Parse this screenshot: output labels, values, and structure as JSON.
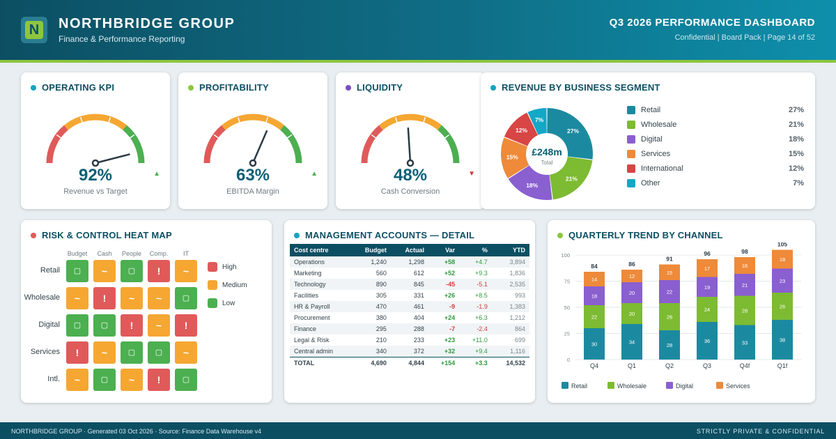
{
  "header": {
    "logo_letter": "N",
    "company": "NORTHBRIDGE GROUP",
    "subtitle": "Finance & Performance Reporting",
    "dashboard_title": "Q3 2026 PERFORMANCE DASHBOARD",
    "meta": "Confidential | Board Pack | Page 14 of 52"
  },
  "colors": {
    "teal": "#0c4f63",
    "accent_green": "#8dc63f",
    "high": "#e05a5a",
    "medium": "#f5a732",
    "low": "#4caf50"
  },
  "kpis": [
    {
      "title": "OPERATING KPI",
      "dot": "#14a4bf",
      "value": "92%",
      "percent": 92,
      "label": "Revenue vs Target",
      "trend": "▲",
      "trend_dir": "up"
    },
    {
      "title": "PROFITABILITY",
      "dot": "#8dc63f",
      "value": "63%",
      "percent": 63,
      "label": "EBITDA Margin",
      "trend": "▲",
      "trend_dir": "up"
    },
    {
      "title": "LIQUIDITY",
      "dot": "#7a4fc0",
      "value": "48%",
      "percent": 48,
      "label": "Cash Conversion",
      "trend": "▼",
      "trend_dir": "down"
    }
  ],
  "segments": {
    "title": "REVENUE BY BUSINESS SEGMENT",
    "center_value": "£248m",
    "center_label": "Total",
    "items": [
      {
        "name": "Retail",
        "pct": 27,
        "label": "27%",
        "color": "#1b8aa0"
      },
      {
        "name": "Wholesale",
        "pct": 21,
        "label": "21%",
        "color": "#7dbb32"
      },
      {
        "name": "Digital",
        "pct": 18,
        "label": "18%",
        "color": "#8a5fd0"
      },
      {
        "name": "Services",
        "pct": 15,
        "label": "15%",
        "color": "#ee8a3a"
      },
      {
        "name": "International",
        "pct": 12,
        "label": "12%",
        "color": "#d84545"
      },
      {
        "name": "Other",
        "pct": 7,
        "label": "7%",
        "color": "#13a8c6"
      }
    ]
  },
  "heatmap": {
    "title": "RISK & CONTROL HEAT MAP",
    "columns": [
      "Budget",
      "Cash",
      "People",
      "Comp.",
      "IT"
    ],
    "rows": [
      {
        "label": "Retail",
        "cells": [
          "L",
          "M",
          "L",
          "H",
          "M"
        ]
      },
      {
        "label": "Wholesale",
        "cells": [
          "M",
          "H",
          "M",
          "M",
          "L"
        ]
      },
      {
        "label": "Digital",
        "cells": [
          "L",
          "L",
          "H",
          "M",
          "H"
        ]
      },
      {
        "label": "Services",
        "cells": [
          "H",
          "M",
          "L",
          "L",
          "M"
        ]
      },
      {
        "label": "Intl.",
        "cells": [
          "M",
          "L",
          "M",
          "H",
          "L"
        ]
      }
    ],
    "symbols": {
      "H": "!",
      "M": "~",
      "L": "▢"
    },
    "legend": [
      {
        "level": "H",
        "label": "High"
      },
      {
        "level": "M",
        "label": "Medium"
      },
      {
        "level": "L",
        "label": "Low"
      }
    ]
  },
  "accounts": {
    "title": "MANAGEMENT ACCOUNTS — DETAIL",
    "headers": [
      "Cost centre",
      "Budget",
      "Actual",
      "Var",
      "%",
      "YTD"
    ],
    "rows": [
      [
        "Operations",
        "1,240",
        "1,298",
        "+58",
        "+4.7",
        "3,894"
      ],
      [
        "Marketing",
        "560",
        "612",
        "+52",
        "+9.3",
        "1,836"
      ],
      [
        "Technology",
        "890",
        "845",
        "-45",
        "-5.1",
        "2,535"
      ],
      [
        "Facilities",
        "305",
        "331",
        "+26",
        "+8.5",
        "993"
      ],
      [
        "HR & Payroll",
        "470",
        "461",
        "-9",
        "-1.9",
        "1,383"
      ],
      [
        "Procurement",
        "380",
        "404",
        "+24",
        "+6.3",
        "1,212"
      ],
      [
        "Finance",
        "295",
        "288",
        "-7",
        "-2.4",
        "864"
      ],
      [
        "Legal & Risk",
        "210",
        "233",
        "+23",
        "+11.0",
        "699"
      ],
      [
        "Central admin",
        "340",
        "372",
        "+32",
        "+9.4",
        "1,116"
      ]
    ],
    "total": [
      "TOTAL",
      "4,690",
      "4,844",
      "+154",
      "+3.3",
      "14,532"
    ]
  },
  "trend": {
    "title": "QUARTERLY TREND BY CHANNEL"
  },
  "chart_data": {
    "type": "bar",
    "stacked": true,
    "categories": [
      "Q4",
      "Q1",
      "Q2",
      "Q3",
      "Q4f",
      "Q1f"
    ],
    "series": [
      {
        "name": "Retail",
        "color": "#1b8aa0",
        "values": [
          30,
          34,
          28,
          36,
          33,
          38
        ]
      },
      {
        "name": "Wholesale",
        "color": "#7dbb32",
        "values": [
          22,
          20,
          26,
          24,
          28,
          26
        ]
      },
      {
        "name": "Digital",
        "color": "#8a5fd0",
        "values": [
          18,
          20,
          22,
          19,
          21,
          23
        ]
      },
      {
        "name": "Services",
        "color": "#ee8a3a",
        "values": [
          14,
          12,
          15,
          17,
          16,
          18
        ]
      }
    ],
    "totals": [
      84,
      86,
      91,
      96,
      98,
      105
    ],
    "yticks": [
      0,
      25,
      50,
      75,
      100
    ],
    "ylim": [
      0,
      100
    ],
    "grid": true,
    "legend": "bottom"
  },
  "footer": {
    "left": "NORTHBRIDGE GROUP · Generated 03 Oct 2026 · Source: Finance Data Warehouse v4",
    "right": "STRICTLY PRIVATE & CONFIDENTIAL"
  }
}
